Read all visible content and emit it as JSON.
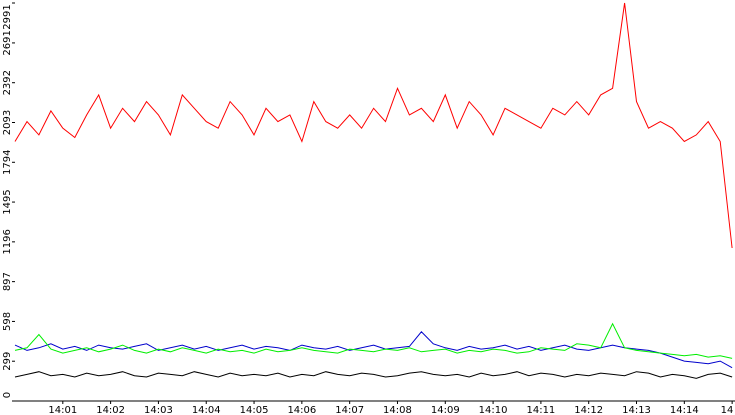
{
  "chart_data": {
    "type": "line",
    "x": [
      0,
      0.25,
      0.5,
      0.75,
      1,
      1.25,
      1.5,
      1.75,
      2,
      2.25,
      2.5,
      2.75,
      3,
      3.25,
      3.5,
      3.75,
      4,
      4.25,
      4.5,
      4.75,
      5,
      5.25,
      5.5,
      5.75,
      6,
      6.25,
      6.5,
      6.75,
      7,
      7.25,
      7.5,
      7.75,
      8,
      8.25,
      8.5,
      8.75,
      9,
      9.25,
      9.5,
      9.75,
      10,
      10.25,
      10.5,
      10.75,
      11,
      11.25,
      11.5,
      11.75,
      12,
      12.25,
      12.5,
      12.75,
      13,
      13.25,
      13.5,
      13.75,
      14,
      14.25,
      14.5,
      14.75,
      15
    ],
    "xlim": [
      0,
      15.06
    ],
    "xticks": [
      {
        "value": 1,
        "label": "14:01"
      },
      {
        "value": 2,
        "label": "14:02"
      },
      {
        "value": 3,
        "label": "14:03"
      },
      {
        "value": 4,
        "label": "14:04"
      },
      {
        "value": 5,
        "label": "14:05"
      },
      {
        "value": 6,
        "label": "14:06"
      },
      {
        "value": 7,
        "label": "14:07"
      },
      {
        "value": 8,
        "label": "14:08"
      },
      {
        "value": 9,
        "label": "14:09"
      },
      {
        "value": 10,
        "label": "14:10"
      },
      {
        "value": 11,
        "label": "14:11"
      },
      {
        "value": 12,
        "label": "14:12"
      },
      {
        "value": 13,
        "label": "14:13"
      },
      {
        "value": 14,
        "label": "14:14"
      },
      {
        "value": 15,
        "label": "14"
      }
    ],
    "ylim": [
      0,
      2991
    ],
    "yticks": [
      0,
      299,
      598,
      897,
      1196,
      1495,
      1794,
      2093,
      2392,
      2691,
      2991
    ],
    "series": [
      {
        "color": "#ff0000",
        "values": [
          1950,
          2100,
          2000,
          2180,
          2050,
          1980,
          2150,
          2300,
          2050,
          2200,
          2100,
          2250,
          2150,
          2000,
          2300,
          2200,
          2100,
          2050,
          2250,
          2150,
          2000,
          2200,
          2100,
          2150,
          1950,
          2250,
          2100,
          2050,
          2150,
          2050,
          2200,
          2100,
          2350,
          2150,
          2200,
          2100,
          2300,
          2050,
          2250,
          2150,
          2000,
          2200,
          2150,
          2100,
          2050,
          2200,
          2150,
          2250,
          2150,
          2300,
          2350,
          2991,
          2250,
          2050,
          2100,
          2050,
          1950,
          2000,
          2100,
          1950,
          1150
        ]
      },
      {
        "color": "#0000cc",
        "values": [
          420,
          380,
          400,
          430,
          390,
          410,
          380,
          420,
          400,
          390,
          410,
          430,
          380,
          400,
          420,
          390,
          410,
          380,
          400,
          420,
          390,
          410,
          400,
          380,
          420,
          400,
          390,
          410,
          380,
          400,
          420,
          390,
          400,
          410,
          520,
          430,
          400,
          380,
          410,
          390,
          400,
          420,
          390,
          410,
          380,
          400,
          420,
          390,
          380,
          400,
          420,
          400,
          390,
          380,
          360,
          330,
          300,
          290,
          280,
          300,
          250
        ]
      },
      {
        "color": "#00ee00",
        "values": [
          380,
          400,
          500,
          390,
          360,
          380,
          400,
          370,
          390,
          420,
          380,
          360,
          390,
          370,
          400,
          380,
          360,
          390,
          370,
          380,
          360,
          390,
          370,
          380,
          400,
          380,
          370,
          360,
          390,
          380,
          370,
          390,
          380,
          400,
          370,
          380,
          390,
          360,
          380,
          370,
          390,
          380,
          360,
          370,
          400,
          390,
          380,
          430,
          420,
          400,
          580,
          400,
          380,
          370,
          360,
          350,
          340,
          350,
          330,
          340,
          320
        ]
      },
      {
        "color": "#000000",
        "values": [
          180,
          200,
          220,
          190,
          200,
          180,
          210,
          190,
          200,
          220,
          190,
          180,
          210,
          200,
          190,
          220,
          200,
          180,
          210,
          190,
          200,
          190,
          210,
          180,
          200,
          190,
          220,
          200,
          190,
          210,
          200,
          180,
          190,
          210,
          220,
          200,
          190,
          200,
          180,
          210,
          190,
          200,
          220,
          190,
          210,
          200,
          180,
          200,
          190,
          210,
          200,
          190,
          220,
          210,
          180,
          200,
          190,
          170,
          200,
          210,
          180
        ]
      }
    ]
  }
}
